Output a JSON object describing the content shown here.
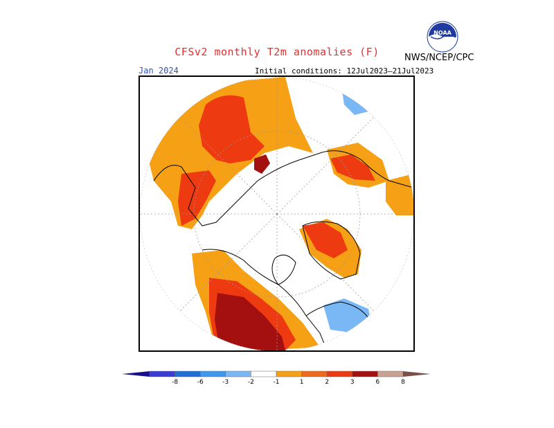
{
  "header": {
    "title": "CFSv2 monthly T2m anomalies (F)",
    "agency": "NWS/NCEP/CPC",
    "target_month": "Jan 2024",
    "initial_conditions": "Initial conditions: 12Jul2023–21Jul2023",
    "logo_text": "NOAA"
  },
  "legend": {
    "labels": [
      "-8",
      "-6",
      "-3",
      "-2",
      "-1",
      "1",
      "2",
      "3",
      "6",
      "8"
    ],
    "colors": [
      "#1a0f8c",
      "#3b3bd6",
      "#1f6fd8",
      "#3f98ef",
      "#7ab8f5",
      "#ffffff",
      "#f5a015",
      "#f06a1e",
      "#ee3a10",
      "#a40f0f",
      "#c9a193",
      "#7a5048"
    ]
  },
  "map": {
    "projection": "north-polar-stereographic",
    "palette": {
      "light_orange": "#f5a015",
      "orange_red": "#f06a1e",
      "red": "#ee3a10",
      "dark_red": "#a40f0f",
      "light_blue": "#7ab8f5"
    }
  }
}
